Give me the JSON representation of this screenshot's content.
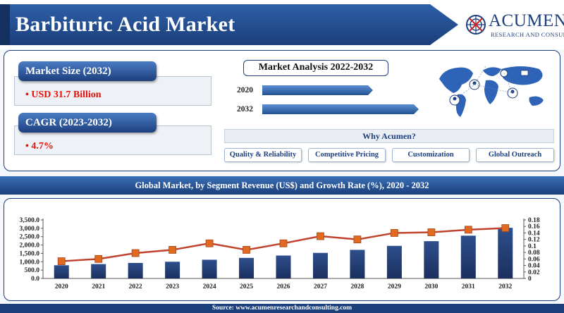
{
  "header": {
    "title": "Barbituric Acid Market",
    "logo_name": "Acumen",
    "logo_display": "ACUMEN",
    "logo_tagline": "RESEARCH AND CONSULTING",
    "brand_color": "#1d3f7e"
  },
  "metrics": [
    {
      "label": "Market Size (2032)",
      "value": "• USD 31.7 Billion"
    },
    {
      "label": "CAGR (2023-2032)",
      "value": "• 4.7%"
    }
  ],
  "analysis": {
    "title": "Market Analysis 2022-2032",
    "years": [
      "2020",
      "2032"
    ]
  },
  "why": {
    "title": "Why Acumen?",
    "items": [
      "Quality & Reliability",
      "Competitive Pricing",
      "Customization",
      "Global Outreach"
    ]
  },
  "section_title": "Global Market, by Segment Revenue (US$) and Growth Rate (%), 2020 - 2032",
  "icons": [
    "world-map-icon",
    "logo-emblem-icon"
  ],
  "chart_data": {
    "type": "bar",
    "categories": [
      "2020",
      "2021",
      "2022",
      "2023",
      "2024",
      "2025",
      "2026",
      "2027",
      "2028",
      "2029",
      "2030",
      "2031",
      "2032"
    ],
    "series": [
      {
        "type": "bar",
        "axis": "left",
        "color": "#1b2f5e",
        "values": [
          790,
          860,
          930,
          1000,
          1120,
          1230,
          1370,
          1530,
          1710,
          1950,
          2230,
          2560,
          3030
        ]
      },
      {
        "type": "line",
        "axis": "right",
        "color": "#c0432e",
        "marker_color": "#e06a1f",
        "values": [
          0.053,
          0.06,
          0.078,
          0.088,
          0.108,
          0.088,
          0.108,
          0.13,
          0.12,
          0.14,
          0.142,
          0.15,
          0.155
        ]
      }
    ],
    "y_left": {
      "min": 0,
      "max": 3500,
      "ticks": [
        "0.0",
        "500.0",
        "1,000.0",
        "1,500.0",
        "2,000.0",
        "2,500.0",
        "3,000.0",
        "3,500.0"
      ]
    },
    "y_right": {
      "min": 0,
      "max": 0.18,
      "ticks": [
        "0",
        "0.02",
        "0.04",
        "0.06",
        "0.08",
        "0.1",
        "0.12",
        "0.14",
        "0.16",
        "0.18"
      ]
    },
    "grid": false,
    "legend": "none"
  },
  "source": "Source: www.acumenresearchandconsulting.com"
}
